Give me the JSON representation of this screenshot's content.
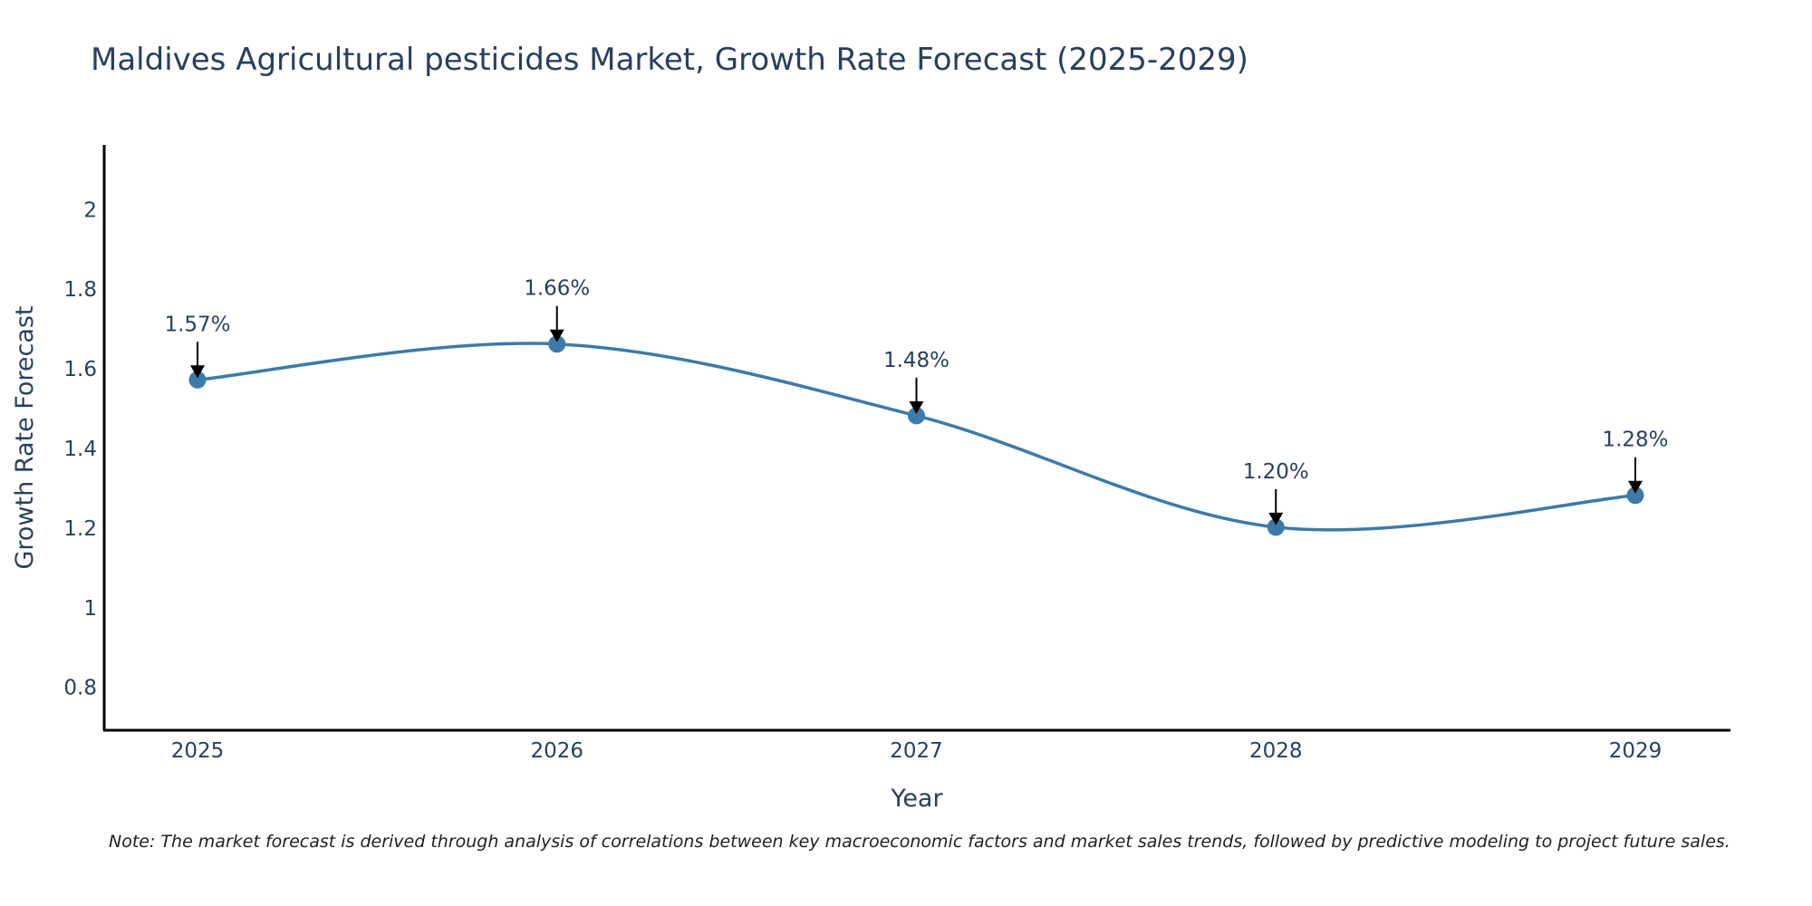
{
  "chart_data": {
    "type": "line",
    "title": "Maldives Agricultural pesticides Market, Growth Rate Forecast (2025-2029)",
    "xlabel": "Year",
    "ylabel": "Growth Rate Forecast",
    "categories": [
      "2025",
      "2026",
      "2027",
      "2028",
      "2029"
    ],
    "series": [
      {
        "name": "Growth Rate Forecast",
        "values": [
          1.57,
          1.66,
          1.48,
          1.2,
          1.28
        ]
      }
    ],
    "data_labels": [
      "1.57%",
      "1.66%",
      "1.48%",
      "1.20%",
      "1.28%"
    ],
    "yticks": [
      0.8,
      1,
      1.2,
      1.4,
      1.6,
      1.8,
      2
    ],
    "ytick_labels": [
      "0.8",
      "1",
      "1.2",
      "1.4",
      "1.6",
      "1.8",
      "2"
    ],
    "ylim": [
      0.69,
      2.16
    ],
    "grid": false,
    "line_color": "#3d7aa9",
    "marker_color": "#3d7aa9",
    "note": "Note: The market forecast is derived through analysis of correlations between key macroeconomic factors and market sales trends, followed by predictive modeling to project future sales."
  }
}
